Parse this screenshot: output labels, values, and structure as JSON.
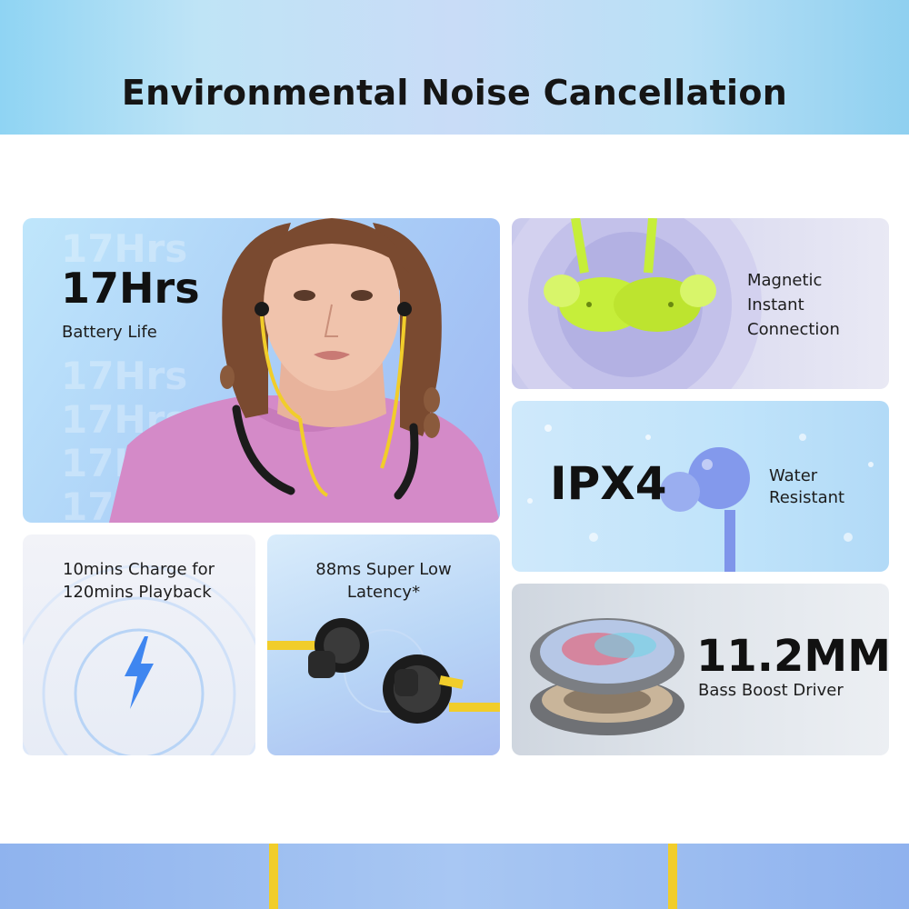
{
  "banner": {
    "title": "Environmental Noise Cancellation"
  },
  "battery": {
    "headline": "17Hrs",
    "caption": "Battery Life",
    "ghost_text": "17Hrs"
  },
  "magnetic": {
    "line1": "Magnetic",
    "line2": "Instant",
    "line3": "Connection"
  },
  "water": {
    "headline": "IPX4",
    "line1": "Water",
    "line2": "Resistant"
  },
  "charge": {
    "line1": "10mins Charge for",
    "line2": "120mins Playback"
  },
  "latency": {
    "line1": "88ms Super Low",
    "line2": "Latency*"
  },
  "driver": {
    "headline": "11.2MM",
    "caption": "Bass Boost Driver"
  },
  "colors": {
    "accent_yellow": "#f1cd2a",
    "lime_earbud": "#c6ee3a",
    "blue_earbud": "#7f95ea",
    "bolt_blue": "#3f86f0"
  },
  "icons": [
    "lightning-bolt-icon"
  ]
}
